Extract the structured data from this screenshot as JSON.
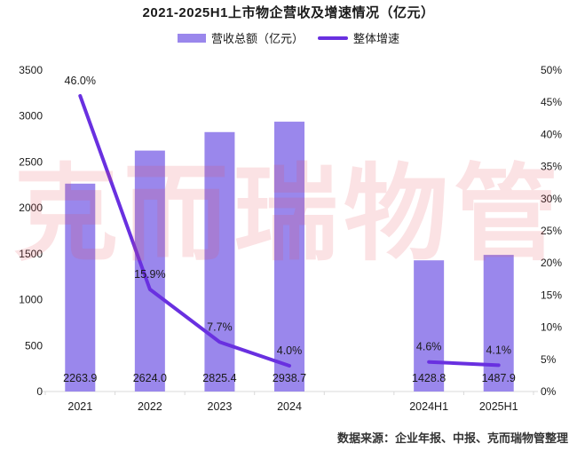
{
  "title": "2021-2025H1上市物企营收及增速情况（亿元）",
  "legend": [
    {
      "label": "营收总额（亿元）",
      "type": "bar",
      "color": "#9A87EC"
    },
    {
      "label": "整体增速",
      "type": "line",
      "color": "#6930E0"
    }
  ],
  "watermark": "克而瑞物管",
  "footer": "数据来源：企业年报、中报、克而瑞物管整理",
  "colors": {
    "bar": "#9A87EC",
    "line": "#6930E0",
    "axis_line": "#D9D9D9",
    "text": "#1A1A1A",
    "watermark": "rgba(231,76,84,0.16)"
  },
  "chart_data": {
    "type": "bar",
    "subtype": "bar+line combo with dual value axes and a gap slot between 2024 and 2024H1",
    "title": "2021-2025H1上市物企营收及增速情况（亿元）",
    "categories": [
      "2021",
      "2022",
      "2023",
      "2024",
      "",
      "2024H1",
      "2025H1"
    ],
    "series": [
      {
        "name": "营收总额（亿元）",
        "type": "bar",
        "axis": "left",
        "color": "#9A87EC",
        "values": [
          2263.9,
          2624.0,
          2825.4,
          2938.7,
          null,
          1428.8,
          1487.9
        ],
        "labels": [
          "2263.9",
          "2624.0",
          "2825.4",
          "2938.7",
          null,
          "1428.8",
          "1487.9"
        ]
      },
      {
        "name": "整体增速",
        "type": "line",
        "axis": "right",
        "color": "#6930E0",
        "values": [
          46.0,
          15.9,
          7.7,
          4.0,
          null,
          4.6,
          4.1
        ],
        "labels": [
          "46.0%",
          "15.9%",
          "7.7%",
          "4.0%",
          null,
          "4.6%",
          "4.1%"
        ]
      }
    ],
    "left_axis": {
      "min": 0,
      "max": 3500,
      "step": 500,
      "ticks": [
        "0",
        "500",
        "1000",
        "1500",
        "2000",
        "2500",
        "3000",
        "3500"
      ]
    },
    "right_axis": {
      "min": 0,
      "max": 50,
      "step": 5,
      "ticks": [
        "0%",
        "5%",
        "10%",
        "15%",
        "20%",
        "25%",
        "30%",
        "35%",
        "40%",
        "45%",
        "50%"
      ]
    },
    "grid": false,
    "legend_position": "top"
  }
}
